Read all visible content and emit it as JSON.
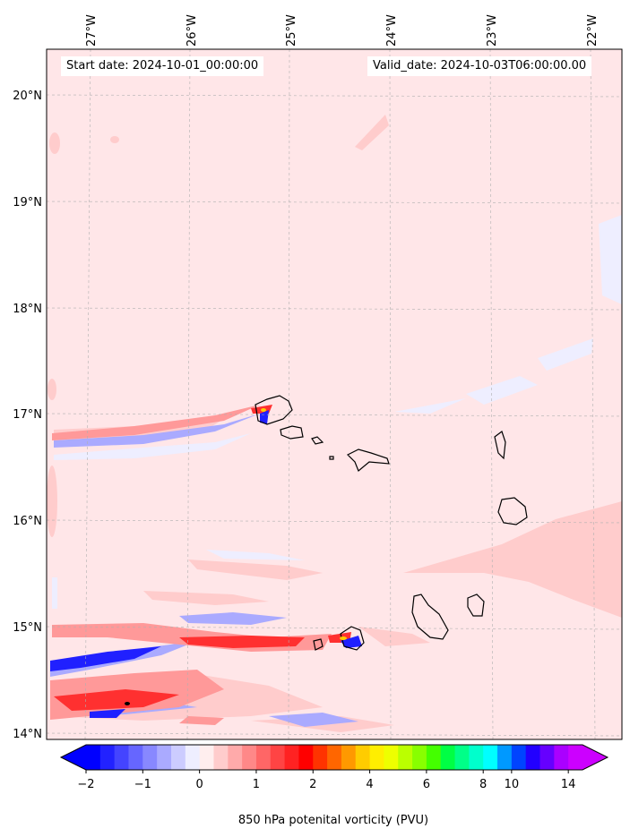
{
  "chart_data": {
    "type": "heatmap",
    "title": "",
    "start_label": "Start date: 2024-10-01_00:00:00",
    "valid_label": "Valid_date: 2024-10-03T06:00:00.00",
    "colorbar_label": "850 hPa potenital vorticity (PVU)",
    "lon_range": [
      -27.4,
      -21.8
    ],
    "lat_range": [
      13.95,
      20.45
    ],
    "lon_ticks": [
      -27,
      -26,
      -25,
      -24,
      -23,
      -22
    ],
    "lon_tick_labels": [
      "27°W",
      "26°W",
      "25°W",
      "24°W",
      "23°W",
      "22°W"
    ],
    "lat_ticks": [
      14,
      15,
      16,
      17,
      18,
      19,
      20
    ],
    "lat_tick_labels": [
      "14°N",
      "15°N",
      "16°N",
      "17°N",
      "18°N",
      "19°N",
      "20°N"
    ],
    "colorbar_ticks": [
      -2,
      -1,
      0,
      1,
      2,
      4,
      6,
      8,
      10,
      14
    ],
    "colorbar_tick_labels": [
      "−2",
      "−1",
      "0",
      "1",
      "2",
      "4",
      "6",
      "8",
      "10",
      "14"
    ],
    "levels": [
      -2,
      -1.75,
      -1.5,
      -1.25,
      -1,
      -0.75,
      -0.5,
      -0.25,
      0,
      0.25,
      0.5,
      0.75,
      1,
      1.25,
      1.5,
      1.75,
      2,
      2.5,
      3,
      3.5,
      4,
      4.5,
      5,
      5.5,
      6,
      6.5,
      7,
      7.5,
      8,
      9,
      10,
      11,
      12,
      13,
      14
    ],
    "colors": {
      "background_field": "#ffe6e8",
      "light_red": "#ffc8c8",
      "mid_red": "#ff8c8c",
      "strong_red": "#ff3030",
      "light_blue": "#e8e8ff",
      "mid_blue": "#a0a0ff",
      "strong_blue": "#2020ff",
      "coast": "#000000",
      "gridline": "#b0b0b0"
    },
    "colorbar_colors": [
      "#0000ff",
      "#2222ff",
      "#4444ff",
      "#6666ff",
      "#8888ff",
      "#aaaaff",
      "#ccccff",
      "#eeeeff",
      "#ffeeee",
      "#ffcccc",
      "#ffaaaa",
      "#ff8888",
      "#ff6666",
      "#ff4444",
      "#ff2222",
      "#ff0000",
      "#ff3300",
      "#ff6600",
      "#ff9900",
      "#ffcc00",
      "#ffee00",
      "#eeff00",
      "#bbff00",
      "#88ff00",
      "#44ff00",
      "#00ff44",
      "#00ff88",
      "#00ffcc",
      "#00ffff",
      "#0099ff",
      "#0044ff",
      "#2200ff",
      "#6600ff",
      "#aa00ff",
      "#cc00ff"
    ]
  }
}
